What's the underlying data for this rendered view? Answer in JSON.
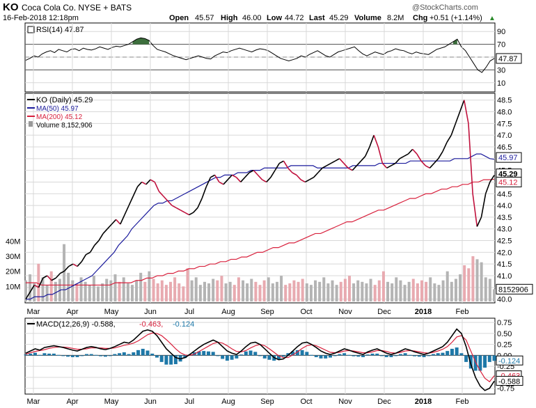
{
  "header": {
    "symbol": "KO",
    "company": "Coca Cola Co. NYSE + BATS",
    "date": "16-Feb-2018 12:18pm",
    "open_label": "Open",
    "open": "45.57",
    "high_label": "High",
    "high": "46.00",
    "low_label": "Low",
    "low": "44.72",
    "last_label": "Last",
    "last": "45.29",
    "volume_label": "Volume",
    "volume": "8.2M",
    "chg_label": "Chg",
    "chg": "+0.51 (+1.14%)",
    "chg_arrow": "▲",
    "watermark": "@StockCharts.com"
  },
  "colors": {
    "price": "#000000",
    "price_down": "#c0103c",
    "ma50": "#1a1a9c",
    "ma200": "#d8203c",
    "vol_up": "#b4b4b4",
    "vol_down": "#e8aab0",
    "macd_hist": "#1e78a8",
    "rsi_fill": "#3c6e3c",
    "grid": "#d8d8d8"
  },
  "chart_data": [
    {
      "type": "line",
      "panel": "rsi",
      "title": "RSI(14) 47.87",
      "ylim": [
        0,
        100
      ],
      "ticks": [
        "90",
        "70",
        "50",
        "30",
        "10"
      ],
      "tick_values": [
        90,
        70,
        50,
        30,
        10
      ],
      "reference_lines": [
        70,
        30
      ],
      "current_label": "47.87",
      "series": [
        {
          "name": "RSI(14)",
          "values": [
            45,
            48,
            52,
            50,
            55,
            58,
            60,
            57,
            62,
            60,
            58,
            62,
            63,
            60,
            64,
            62,
            61,
            63,
            66,
            64,
            62,
            65,
            67,
            66,
            68,
            70,
            74,
            78,
            80,
            79,
            76,
            68,
            62,
            60,
            58,
            55,
            52,
            50,
            48,
            46,
            48,
            50,
            52,
            50,
            48,
            47,
            52,
            55,
            58,
            57,
            60,
            62,
            64,
            62,
            60,
            58,
            61,
            63,
            62,
            60,
            56,
            52,
            48,
            46,
            44,
            46,
            48,
            52,
            50,
            54,
            57,
            60,
            56,
            52,
            50,
            54,
            58,
            60,
            62,
            64,
            66,
            60,
            55,
            52,
            55,
            58,
            56,
            54,
            58,
            60,
            63,
            61,
            60,
            57,
            55,
            58,
            56,
            55,
            54,
            58,
            62,
            64,
            66,
            70,
            74,
            78,
            66,
            60,
            50,
            40,
            30,
            26,
            34,
            44,
            47.87
          ]
        }
      ]
    },
    {
      "type": "line",
      "panel": "price",
      "title": "KO (Daily) 45.29",
      "legend": [
        "KO (Daily) 45.29",
        "MA(50) 45.97",
        "MA(200) 45.12",
        "Volume 8,152,906"
      ],
      "ylim": [
        39.9,
        48.7
      ],
      "ticks": [
        "48.5",
        "48.0",
        "47.5",
        "47.0",
        "46.5",
        "46.0",
        "45.5",
        "45.0",
        "44.5",
        "44.0",
        "43.5",
        "43.0",
        "42.5",
        "42.0",
        "41.5",
        "41.0",
        "40.5",
        "40.0"
      ],
      "tick_values": [
        48.5,
        48.0,
        47.5,
        47.0,
        46.5,
        46.0,
        45.5,
        45.0,
        44.5,
        44.0,
        43.5,
        43.0,
        42.5,
        42.0,
        41.5,
        41.0,
        40.5,
        40.0
      ],
      "months": [
        "Mar",
        "Apr",
        "May",
        "Jun",
        "Jul",
        "Aug",
        "Sep",
        "Oct",
        "Nov",
        "Dec",
        "2018",
        "Feb"
      ],
      "badges": {
        "ma50": "45.97",
        "last": "45.29",
        "ma200": "45.12",
        "volume": "8152906"
      },
      "series": [
        {
          "name": "KO (Daily)",
          "values": [
            40.0,
            40.3,
            40.6,
            40.5,
            40.9,
            41.0,
            40.8,
            40.9,
            41.1,
            41.2,
            41.4,
            41.5,
            41.4,
            41.6,
            41.9,
            42.0,
            42.3,
            42.5,
            42.8,
            43.0,
            43.2,
            43.4,
            43.2,
            43.6,
            44.0,
            44.4,
            44.8,
            45.0,
            44.9,
            45.1,
            45.0,
            44.6,
            44.4,
            44.2,
            44.0,
            43.9,
            43.8,
            43.7,
            43.6,
            43.7,
            43.9,
            44.3,
            44.8,
            45.2,
            45.3,
            45.0,
            44.9,
            45.1,
            45.3,
            45.2,
            45.0,
            45.2,
            45.4,
            45.5,
            45.3,
            45.1,
            45.0,
            45.2,
            45.5,
            45.8,
            45.9,
            45.6,
            45.4,
            45.3,
            45.1,
            45.0,
            45.1,
            45.2,
            45.4,
            45.6,
            45.7,
            45.8,
            45.9,
            46.0,
            45.8,
            45.6,
            45.5,
            45.7,
            45.9,
            46.1,
            46.5,
            47.0,
            46.5,
            45.8,
            45.6,
            45.7,
            45.8,
            46.0,
            46.1,
            46.2,
            46.4,
            46.2,
            45.9,
            45.7,
            45.6,
            45.8,
            46.0,
            46.3,
            46.7,
            47.0,
            47.5,
            48.0,
            48.5,
            47.5,
            44.5,
            43.1,
            43.5,
            44.5,
            45.0,
            45.29
          ]
        },
        {
          "name": "MA(50)",
          "values": [
            40.0,
            40.0,
            40.1,
            40.1,
            40.1,
            40.2,
            40.2,
            40.3,
            40.4,
            40.4,
            40.5,
            40.6,
            40.7,
            40.8,
            40.9,
            41.0,
            41.2,
            41.4,
            41.6,
            41.8,
            42.0,
            42.3,
            42.5,
            42.7,
            43.0,
            43.2,
            43.4,
            43.6,
            43.8,
            44.0,
            44.1,
            44.1,
            44.2,
            44.2,
            44.3,
            44.4,
            44.5,
            44.6,
            44.7,
            44.8,
            44.9,
            45.0,
            45.1,
            45.2,
            45.2,
            45.3,
            45.3,
            45.3,
            45.4,
            45.4,
            45.4,
            45.5,
            45.5,
            45.5,
            45.6,
            45.6,
            45.6,
            45.6,
            45.6,
            45.6,
            45.7,
            45.7,
            45.7,
            45.7,
            45.7,
            45.7,
            45.6,
            45.6,
            45.6,
            45.6,
            45.6,
            45.6,
            45.6,
            45.6,
            45.7,
            45.7,
            45.7,
            45.7,
            45.7,
            45.7,
            45.8,
            45.8,
            45.8,
            45.8,
            45.8,
            45.8,
            45.8,
            45.9,
            45.9,
            45.9,
            45.9,
            45.9,
            45.9,
            45.9,
            45.9,
            45.9,
            45.9,
            46.0,
            46.0,
            46.0,
            46.0,
            46.1,
            46.2,
            46.2,
            46.1,
            46.0,
            45.97
          ]
        },
        {
          "name": "MA(200)",
          "values": [
            40.7,
            40.7,
            40.7,
            40.6,
            40.6,
            40.6,
            40.6,
            40.6,
            40.6,
            40.6,
            40.6,
            40.6,
            40.6,
            40.6,
            40.6,
            40.6,
            40.6,
            40.7,
            40.7,
            40.7,
            40.7,
            40.8,
            40.8,
            40.9,
            40.9,
            41.0,
            41.0,
            41.1,
            41.1,
            41.2,
            41.2,
            41.3,
            41.3,
            41.4,
            41.4,
            41.5,
            41.5,
            41.6,
            41.6,
            41.7,
            41.7,
            41.8,
            41.8,
            41.9,
            42.0,
            42.0,
            42.1,
            42.2,
            42.2,
            42.3,
            42.4,
            42.4,
            42.5,
            42.6,
            42.7,
            42.8,
            42.8,
            42.9,
            43.0,
            43.1,
            43.2,
            43.3,
            43.3,
            43.4,
            43.5,
            43.6,
            43.7,
            43.8,
            43.8,
            43.9,
            44.0,
            44.1,
            44.2,
            44.3,
            44.3,
            44.4,
            44.5,
            44.5,
            44.6,
            44.7,
            44.7,
            44.8,
            44.8,
            44.9,
            44.9,
            45.0,
            45.0,
            45.1,
            45.1,
            45.12
          ]
        },
        {
          "name": "Volume",
          "values": [
            14,
            18,
            12,
            25,
            16,
            11,
            20,
            13,
            15,
            38,
            19,
            14,
            12,
            16,
            13,
            11,
            17,
            10,
            12,
            15,
            14,
            18,
            13,
            16,
            12,
            11,
            14,
            19,
            13,
            20,
            15,
            12,
            14,
            11,
            13,
            16,
            12,
            10,
            22,
            14,
            16,
            11,
            13,
            12,
            15,
            14,
            17,
            12,
            13,
            11,
            16,
            14,
            12,
            15,
            13,
            11,
            14,
            16,
            12,
            13,
            17,
            11,
            12,
            14,
            13,
            15,
            12,
            11,
            14,
            13,
            16,
            12,
            14,
            11,
            13,
            15,
            17,
            12,
            14,
            13,
            12,
            15,
            11,
            14,
            20,
            13,
            12,
            16,
            14,
            11,
            13,
            15,
            12,
            14,
            13,
            16,
            12,
            11,
            14,
            20,
            13,
            15,
            18,
            24,
            22,
            30,
            28,
            26,
            16,
            15,
            8.15
          ]
        }
      ]
    },
    {
      "type": "line",
      "panel": "macd",
      "title": "MACD(12,26,9) -0.588, -0.463, -0.124",
      "legend": [
        "MACD(12,26,9) -0.588",
        "-0.463",
        "-0.124"
      ],
      "ylim": [
        -0.85,
        0.8
      ],
      "ticks": [
        "0.75",
        "0.50",
        "0.25",
        "0.00",
        "-0.25",
        "-0.50",
        "-0.75"
      ],
      "tick_values": [
        0.75,
        0.5,
        0.25,
        0.0,
        -0.25,
        -0.5,
        -0.75
      ],
      "badges": {
        "hist": "-0.124",
        "signal": "-0.463",
        "macd": "-0.588"
      },
      "series": [
        {
          "name": "MACD",
          "values": [
            0.05,
            0.1,
            0.15,
            0.12,
            0.18,
            0.2,
            0.22,
            0.2,
            0.18,
            0.15,
            0.12,
            0.1,
            0.14,
            0.18,
            0.2,
            0.18,
            0.15,
            0.13,
            0.16,
            0.2,
            0.25,
            0.3,
            0.28,
            0.35,
            0.45,
            0.55,
            0.58,
            0.55,
            0.45,
            0.3,
            0.15,
            0.05,
            -0.05,
            -0.08,
            -0.05,
            0.02,
            0.1,
            0.18,
            0.25,
            0.3,
            0.35,
            0.3,
            0.2,
            0.1,
            0.05,
            0.02,
            0.1,
            0.2,
            0.28,
            0.3,
            0.25,
            0.15,
            0.05,
            -0.05,
            -0.1,
            -0.08,
            0.0,
            0.1,
            0.2,
            0.28,
            0.3,
            0.25,
            0.18,
            0.1,
            0.05,
            0.02,
            0.05,
            0.1,
            0.15,
            0.12,
            0.08,
            0.05,
            0.02,
            0.08,
            0.12,
            0.15,
            0.1,
            0.05,
            0.02,
            0.05,
            0.1,
            0.15,
            0.12,
            0.08,
            0.05,
            0.02,
            0.05,
            0.1,
            0.15,
            0.2,
            0.3,
            0.45,
            0.6,
            0.5,
            0.2,
            -0.2,
            -0.5,
            -0.7,
            -0.8,
            -0.75,
            -0.588
          ]
        },
        {
          "name": "Signal",
          "values": [
            0.03,
            0.06,
            0.09,
            0.11,
            0.13,
            0.16,
            0.18,
            0.19,
            0.19,
            0.18,
            0.16,
            0.14,
            0.14,
            0.15,
            0.17,
            0.17,
            0.17,
            0.16,
            0.16,
            0.17,
            0.2,
            0.23,
            0.25,
            0.28,
            0.33,
            0.4,
            0.47,
            0.51,
            0.5,
            0.45,
            0.36,
            0.26,
            0.15,
            0.06,
            0.01,
            0.0,
            0.03,
            0.09,
            0.15,
            0.21,
            0.27,
            0.3,
            0.28,
            0.22,
            0.15,
            0.09,
            0.08,
            0.11,
            0.17,
            0.22,
            0.25,
            0.22,
            0.15,
            0.07,
            -0.01,
            -0.05,
            -0.05,
            0.01,
            0.08,
            0.16,
            0.22,
            0.24,
            0.22,
            0.17,
            0.12,
            0.07,
            0.06,
            0.07,
            0.1,
            0.11,
            0.1,
            0.08,
            0.06,
            0.06,
            0.08,
            0.11,
            0.11,
            0.09,
            0.06,
            0.05,
            0.07,
            0.1,
            0.11,
            0.1,
            0.08,
            0.06,
            0.05,
            0.07,
            0.1,
            0.14,
            0.2,
            0.3,
            0.42,
            0.45,
            0.35,
            0.1,
            -0.15,
            -0.35,
            -0.52,
            -0.6,
            -0.463
          ]
        }
      ]
    }
  ]
}
